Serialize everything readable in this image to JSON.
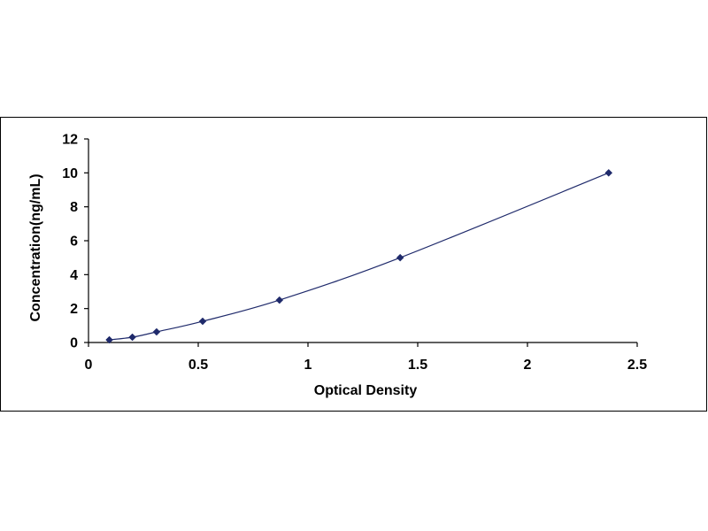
{
  "chart_data": {
    "type": "scatter",
    "xlabel": "Optical Density",
    "ylabel": "Concentration(ng/mL)",
    "xlim": [
      0,
      2.5
    ],
    "ylim": [
      0,
      12
    ],
    "xticks": [
      "0",
      "0.5",
      "1",
      "1.5",
      "2",
      "2.5"
    ],
    "yticks": [
      "0",
      "2",
      "4",
      "6",
      "8",
      "10",
      "12"
    ],
    "grid": false,
    "legend": "none",
    "series": [
      {
        "marker": "diamond",
        "line": "smooth",
        "color": "#1f2a6b",
        "points": [
          {
            "x": 0.095,
            "y": 0.156
          },
          {
            "x": 0.2,
            "y": 0.312
          },
          {
            "x": 0.31,
            "y": 0.625
          },
          {
            "x": 0.52,
            "y": 1.25
          },
          {
            "x": 0.87,
            "y": 2.5
          },
          {
            "x": 1.42,
            "y": 5
          },
          {
            "x": 2.37,
            "y": 10
          }
        ]
      }
    ]
  }
}
